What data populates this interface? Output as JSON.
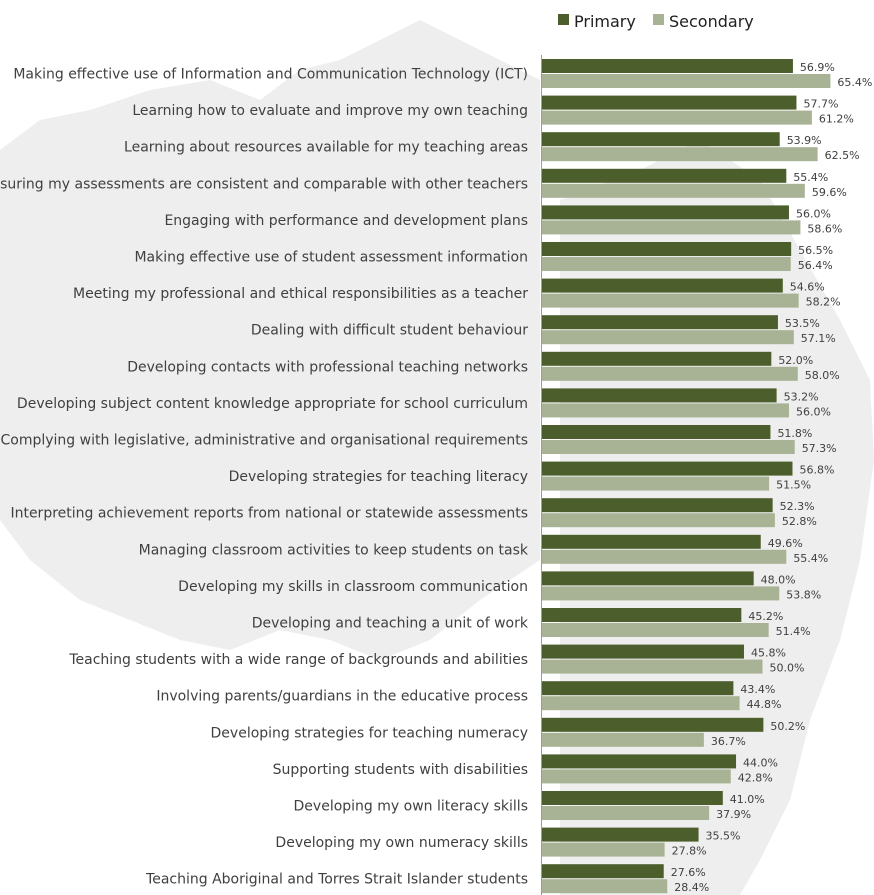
{
  "colors": {
    "primary": "#4b5e2b",
    "secondary": "#a8b295",
    "axis": "#9a9a9a",
    "background_map": "#eeeeee"
  },
  "chart_data": {
    "type": "bar",
    "orientation": "horizontal",
    "legend_position": "top-right",
    "grid": false,
    "xlim": [
      0,
      100
    ],
    "categories": [
      "Making effective use of Information and Communication Technology (ICT)",
      "Learning how to evaluate and improve my own teaching",
      "Learning about resources available for my teaching areas",
      "Ensuring my assessments are consistent and comparable with other teachers",
      "Engaging with performance and development plans",
      "Making effective use of student assessment information",
      "Meeting my professional and ethical responsibilities as a teacher",
      "Dealing with difficult student behaviour",
      "Developing contacts with professional teaching networks",
      "Developing subject content knowledge appropriate for school curriculum",
      "Complying with legislative, administrative and organisational requirements",
      "Developing strategies for teaching literacy",
      "Interpreting achievement reports from national or statewide assessments",
      "Managing classroom activities to keep students on task",
      "Developing my skills in classroom communication",
      "Developing and teaching a unit of work",
      "Teaching students with a wide range of backgrounds and abilities",
      "Involving parents/guardians in the educative process",
      "Developing strategies for teaching numeracy",
      "Supporting students with disabilities",
      "Developing my own literacy skills",
      "Developing my own numeracy skills",
      "Teaching Aboriginal and Torres Strait Islander students"
    ],
    "series": [
      {
        "name": "Primary",
        "values": [
          56.9,
          57.7,
          53.9,
          55.4,
          56.0,
          56.5,
          54.6,
          53.5,
          52.0,
          53.2,
          51.8,
          56.8,
          52.3,
          49.6,
          48.0,
          45.2,
          45.8,
          43.4,
          50.2,
          44.0,
          41.0,
          35.5,
          27.6
        ],
        "labels": [
          "56.9%",
          "57.7%",
          "53.9%",
          "55.4%",
          "56.0%",
          "56.5%",
          "54.6%",
          "53.5%",
          "52.0%",
          "53.2%",
          "51.8%",
          "56.8%",
          "52.3%",
          "49.6%",
          "48.0%",
          "45.2%",
          "45.8%",
          "43.4%",
          "50.2%",
          "44.0%",
          "41.0%",
          "35.5%",
          "27.6%"
        ]
      },
      {
        "name": "Secondary",
        "values": [
          65.4,
          61.2,
          62.5,
          59.6,
          58.6,
          56.4,
          58.2,
          57.1,
          58.0,
          56.0,
          57.3,
          51.5,
          52.8,
          55.4,
          53.8,
          51.4,
          50.0,
          44.8,
          36.7,
          42.8,
          37.9,
          27.8,
          28.4
        ],
        "labels": [
          "65.4%",
          "61.2%",
          "62.5%",
          "59.6%",
          "58.6%",
          "56.4%",
          "58.2%",
          "57.1%",
          "58.0%",
          "56.0%",
          "57.3%",
          "51.5%",
          "52.8%",
          "55.4%",
          "53.8%",
          "51.4%",
          "50.0%",
          "44.8%",
          "36.7%",
          "42.8%",
          "37.9%",
          "27.8%",
          "28.4%"
        ]
      }
    ]
  }
}
